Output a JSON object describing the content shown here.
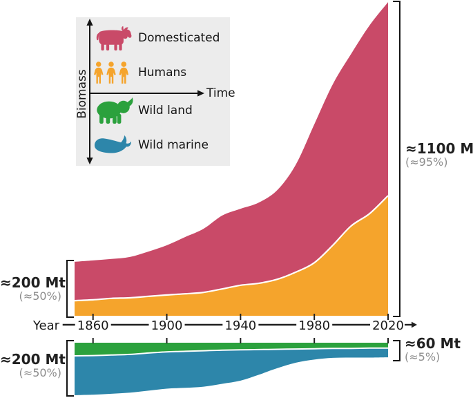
{
  "colors": {
    "domesticated": "#c94a68",
    "humans": "#f5a42c",
    "wild_land": "#2ba13d",
    "wild_marine": "#2d86aa",
    "separator_line": "#ffffff",
    "axis_ink": "#1f1f1f",
    "muted_text": "#8d8d8d",
    "legend_bg": "#ececec"
  },
  "legend": {
    "axis_y_label": "Biomass",
    "axis_x_label": "Time",
    "items": [
      {
        "label": "Domesticated",
        "icon": "cow-icon",
        "color_key": "domesticated"
      },
      {
        "label": "Humans",
        "icon": "humans-icon",
        "color_key": "humans"
      },
      {
        "label": "Wild land",
        "icon": "elephant-icon",
        "color_key": "wild_land"
      },
      {
        "label": "Wild marine",
        "icon": "whale-icon",
        "color_key": "wild_marine"
      }
    ]
  },
  "axis": {
    "label": "Year",
    "ticks": [
      1860,
      1900,
      1940,
      1980,
      2020
    ],
    "arrow_icon": "right-arrow"
  },
  "annotations": {
    "top_left": {
      "value": "≈200 Mt",
      "percent": "(≈50%)"
    },
    "top_right": {
      "value": "≈1100 Mt",
      "percent": "(≈95%)"
    },
    "bottom_left": {
      "value": "≈200 Mt",
      "percent": "(≈50%)"
    },
    "bottom_right": {
      "value": "≈60 Mt",
      "percent": "(≈5%)"
    }
  },
  "chart_data": {
    "type": "area",
    "stacked": true,
    "unit": "Mt",
    "xlabel": "Year",
    "x_range": [
      1850,
      2020
    ],
    "x": [
      1850,
      1860,
      1870,
      1880,
      1890,
      1900,
      1910,
      1920,
      1930,
      1940,
      1950,
      1960,
      1970,
      1980,
      1990,
      2000,
      2010,
      2020
    ],
    "upper_panel": {
      "direction": "up",
      "stack_order": [
        "Humans",
        "Domesticated"
      ],
      "total_2020_label": "≈1100 Mt (≈95%)",
      "total_1850_label": "≈200 Mt (≈50%)"
    },
    "lower_panel": {
      "direction": "down",
      "stack_order": [
        "Wild land",
        "Wild marine"
      ],
      "total_2020_label": "≈60 Mt (≈5%)",
      "total_1850_label": "≈200 Mt (≈50%)"
    },
    "series": [
      {
        "name": "Domesticated",
        "color_key": "domesticated",
        "values": [
          136,
          138,
          138,
          143,
          157,
          174,
          199,
          223,
          257,
          268,
          283,
          313,
          377,
          485,
          564,
          603,
          660,
          678
        ]
      },
      {
        "name": "Humans",
        "color_key": "humans",
        "values": [
          53,
          56,
          61,
          63,
          68,
          73,
          77,
          82,
          94,
          107,
          114,
          128,
          153,
          186,
          247,
          315,
          358,
          421
        ]
      },
      {
        "name": "Wild land",
        "color_key": "wild_land",
        "values": [
          46,
          45,
          43,
          41,
          36,
          32,
          30,
          28,
          26,
          25,
          24,
          23,
          22,
          21,
          20,
          20,
          19,
          19
        ]
      },
      {
        "name": "Wild marine",
        "color_key": "wild_marine",
        "values": [
          138,
          137,
          136,
          134,
          132,
          129,
          128,
          126,
          118,
          108,
          88,
          66,
          48,
          38,
          33,
          32,
          33,
          32
        ]
      }
    ]
  }
}
